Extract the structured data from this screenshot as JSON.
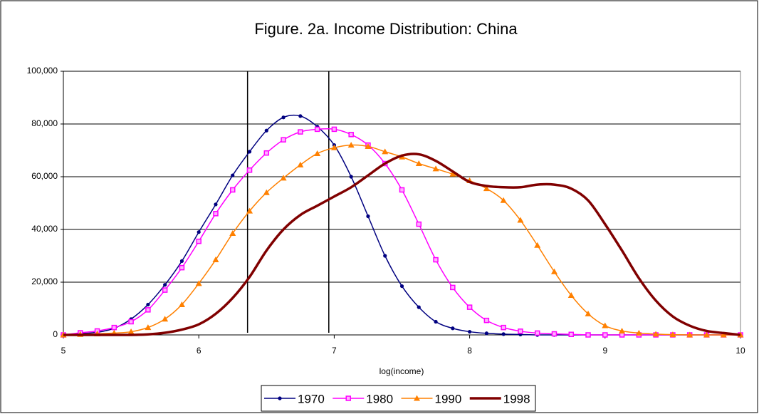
{
  "chart_data": {
    "type": "line",
    "title": "Figure. 2a. Income Distribution: China",
    "x_label": "log(income)",
    "x": [
      5,
      5.125,
      5.25,
      5.375,
      5.5,
      5.625,
      5.75,
      5.875,
      6,
      6.125,
      6.25,
      6.375,
      6.5,
      6.625,
      6.75,
      6.875,
      7,
      7.125,
      7.25,
      7.375,
      7.5,
      7.625,
      7.75,
      7.875,
      8,
      8.125,
      8.25,
      8.375,
      8.5,
      8.625,
      8.75,
      8.875,
      9,
      9.125,
      9.25,
      9.375,
      9.5,
      9.625,
      9.75,
      9.875,
      10
    ],
    "series": [
      {
        "name": "1970",
        "color": "#000080",
        "marker": "circle",
        "line_width": 1.5,
        "values": [
          0,
          500,
          1000,
          2500,
          6000,
          11500,
          19000,
          28000,
          39000,
          49500,
          60500,
          69500,
          77500,
          82500,
          83000,
          79000,
          72000,
          60000,
          45000,
          30000,
          18500,
          10500,
          5000,
          2500,
          1200,
          600,
          300,
          150,
          0,
          0,
          0,
          0,
          0,
          0,
          0,
          0,
          0,
          0,
          0,
          0,
          0
        ]
      },
      {
        "name": "1980",
        "color": "#ff00ff",
        "marker": "square",
        "line_width": 1.5,
        "values": [
          0,
          800,
          1500,
          2800,
          5000,
          9500,
          17000,
          25500,
          35500,
          46000,
          55000,
          62500,
          69000,
          74000,
          77000,
          78000,
          78000,
          76000,
          72000,
          65000,
          55000,
          42000,
          28500,
          18000,
          10500,
          5500,
          2800,
          1400,
          700,
          400,
          200,
          0,
          0,
          0,
          0,
          0,
          0,
          0,
          0,
          0,
          0
        ]
      },
      {
        "name": "1990",
        "color": "#ff8000",
        "marker": "triangle",
        "line_width": 1.5,
        "values": [
          0,
          200,
          400,
          700,
          1200,
          2800,
          6000,
          11500,
          19500,
          28500,
          38500,
          47000,
          54000,
          59500,
          64500,
          68800,
          71000,
          72000,
          71500,
          69500,
          67500,
          65000,
          63000,
          61000,
          58500,
          55500,
          51000,
          43500,
          34000,
          24000,
          15000,
          8000,
          3500,
          1500,
          700,
          300,
          100,
          0,
          0,
          0,
          0
        ]
      },
      {
        "name": "1998",
        "color": "#800000",
        "marker": null,
        "line_width": 3.5,
        "values": [
          0,
          0,
          0,
          0,
          0,
          200,
          800,
          2000,
          4000,
          8000,
          14000,
          22000,
          32000,
          40000,
          45500,
          49000,
          52500,
          56000,
          60500,
          65000,
          68000,
          68500,
          66000,
          62000,
          58000,
          56500,
          56000,
          56000,
          57000,
          57000,
          55500,
          51000,
          42000,
          32000,
          21500,
          13000,
          7000,
          3500,
          1500,
          700,
          0
        ]
      }
    ],
    "reference_lines": [
      6.36,
      6.96
    ],
    "xlim": [
      5,
      10
    ],
    "xticks": [
      5,
      6,
      7,
      8,
      9,
      10
    ],
    "ylim": [
      0,
      100000
    ],
    "yticks": [
      0,
      {
        "value": 20000,
        "label": "20,000"
      },
      {
        "value": 40000,
        "label": "40,000"
      },
      {
        "value": 60000,
        "label": "60,000"
      },
      {
        "value": 80000,
        "label": "80,000"
      },
      {
        "value": 100000,
        "label": "100,000"
      }
    ],
    "grid": true,
    "legend": "bottom"
  }
}
